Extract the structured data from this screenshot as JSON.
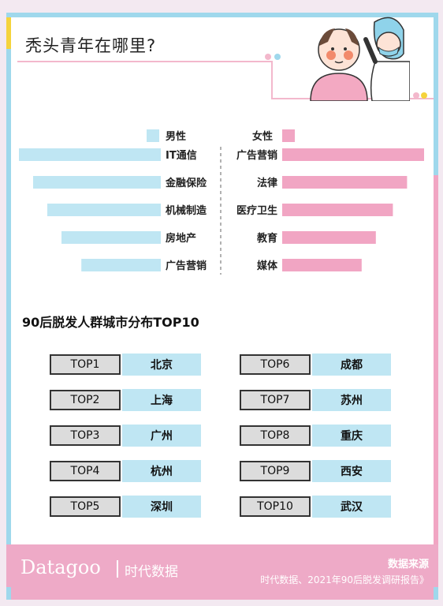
{
  "header": {
    "title": "秃头青年在哪里?"
  },
  "colors": {
    "male": "#bfe6f3",
    "female": "#f1a5c3",
    "frame_blue": "#9fd8ec",
    "frame_yellow": "#f5d33c",
    "footer_pink": "#eeaac7"
  },
  "chart_data": {
    "type": "bar",
    "orientation": "horizontal-butterfly",
    "grid": false,
    "legend": {
      "left_label": "男性",
      "right_label": "女性",
      "placement": "top-center"
    },
    "left_series": {
      "name": "男性",
      "categories": [
        "IT通信",
        "金融保险",
        "机械制造",
        "房地产",
        "广告营销"
      ],
      "values": [
        5,
        4.5,
        4,
        3.5,
        2.8
      ]
    },
    "right_series": {
      "name": "女性",
      "categories": [
        "广告营销",
        "法律",
        "医疗卫生",
        "教育",
        "媒体"
      ],
      "values": [
        5,
        4.4,
        3.9,
        3.3,
        2.8
      ]
    }
  },
  "top10": {
    "title": "90后脱发人群城市分布TOP10",
    "items": [
      {
        "rank": "TOP1",
        "city": "北京"
      },
      {
        "rank": "TOP2",
        "city": "上海"
      },
      {
        "rank": "TOP3",
        "city": "广州"
      },
      {
        "rank": "TOP4",
        "city": "杭州"
      },
      {
        "rank": "TOP5",
        "city": "深圳"
      },
      {
        "rank": "TOP6",
        "city": "成都"
      },
      {
        "rank": "TOP7",
        "city": "苏州"
      },
      {
        "rank": "TOP8",
        "city": "重庆"
      },
      {
        "rank": "TOP9",
        "city": "西安"
      },
      {
        "rank": "TOP10",
        "city": "武汉"
      }
    ]
  },
  "footer": {
    "brand": "Datagoo",
    "brand_cn": "时代数据",
    "source_title": "数据来源",
    "source_text": "时代数据、2021年90后脱发调研报告》"
  }
}
